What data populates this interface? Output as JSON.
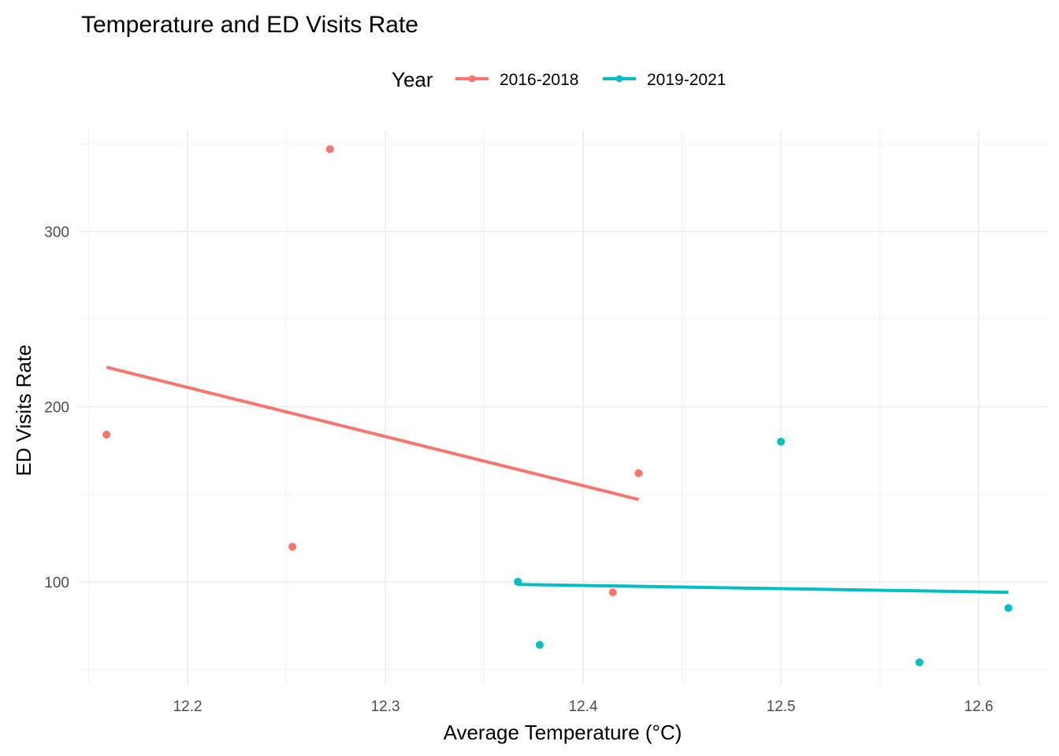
{
  "chart_data": {
    "type": "scatter",
    "title": "Temperature and ED Visits Rate",
    "xlabel": "Average Temperature (°C)",
    "ylabel": "ED Visits Rate",
    "xlim": [
      12.145,
      12.635
    ],
    "ylim": [
      41,
      358
    ],
    "x_ticks": [
      12.2,
      12.3,
      12.4,
      12.5,
      12.6
    ],
    "x_tick_labels": [
      "12.2",
      "12.3",
      "12.4",
      "12.5",
      "12.6"
    ],
    "x_minor_ticks": [
      12.15,
      12.25,
      12.35,
      12.45,
      12.55
    ],
    "y_ticks": [
      100,
      200,
      300
    ],
    "y_tick_labels": [
      "100",
      "200",
      "300"
    ],
    "y_minor_ticks": [
      50,
      150,
      250,
      350
    ],
    "grid": true,
    "legend": {
      "title": "Year",
      "position": "top",
      "entries": [
        "2016-2018",
        "2019-2021"
      ]
    },
    "series": [
      {
        "name": "2016-2018",
        "color": "#F8766D",
        "points": [
          {
            "x": 12.159,
            "y": 184
          },
          {
            "x": 12.253,
            "y": 120
          },
          {
            "x": 12.272,
            "y": 347
          },
          {
            "x": 12.415,
            "y": 94
          },
          {
            "x": 12.428,
            "y": 162
          }
        ],
        "fit_line": [
          {
            "x": 12.159,
            "y": 222.5
          },
          {
            "x": 12.428,
            "y": 147
          }
        ]
      },
      {
        "name": "2019-2021",
        "color": "#00BFC4",
        "points": [
          {
            "x": 12.367,
            "y": 100
          },
          {
            "x": 12.378,
            "y": 64
          },
          {
            "x": 12.5,
            "y": 180
          },
          {
            "x": 12.57,
            "y": 54
          },
          {
            "x": 12.615,
            "y": 85
          }
        ],
        "fit_line": [
          {
            "x": 12.367,
            "y": 98.5
          },
          {
            "x": 12.615,
            "y": 94
          }
        ]
      }
    ]
  }
}
